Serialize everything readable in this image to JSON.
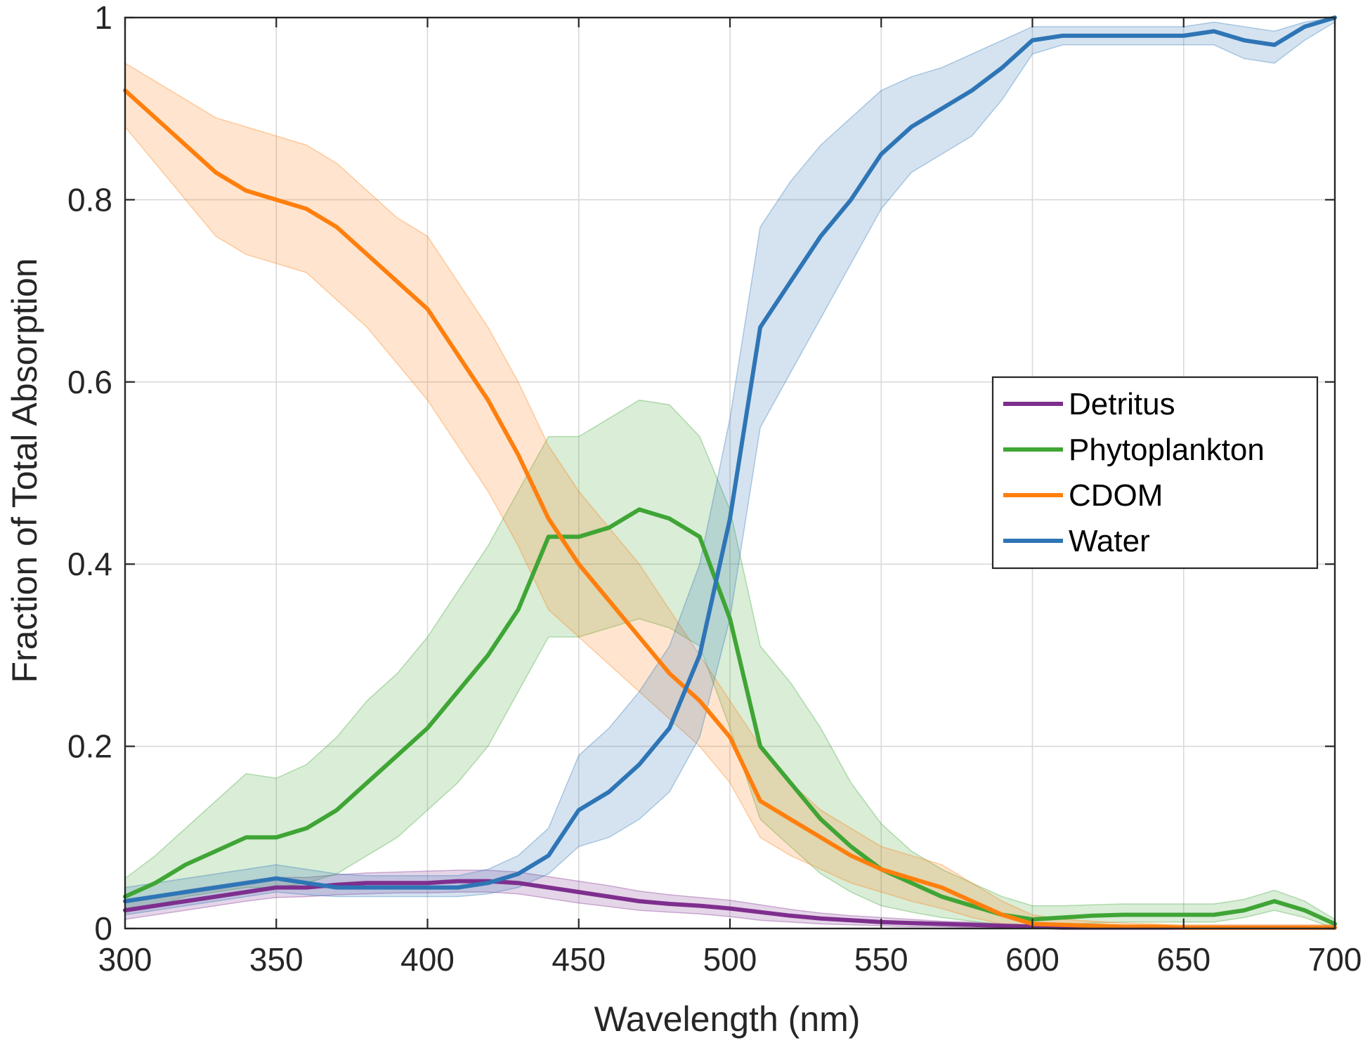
{
  "chart_data": {
    "type": "line",
    "xlabel": "Wavelength (nm)",
    "ylabel": "Fraction of Total Absorption",
    "xlim": [
      300,
      700
    ],
    "ylim": [
      0,
      1
    ],
    "grid": true,
    "legend_position": "right-middle",
    "x_ticks": [
      300,
      350,
      400,
      450,
      500,
      550,
      600,
      650,
      700
    ],
    "y_ticks": [
      0,
      0.2,
      0.4,
      0.6,
      0.8,
      1
    ],
    "y_tick_labels": [
      "0",
      "0.2",
      "0.4",
      "0.6",
      "0.8",
      "1"
    ],
    "x": [
      300,
      310,
      320,
      330,
      340,
      350,
      360,
      370,
      380,
      390,
      400,
      410,
      420,
      430,
      440,
      450,
      460,
      470,
      480,
      490,
      500,
      510,
      520,
      530,
      540,
      550,
      560,
      570,
      580,
      590,
      600,
      610,
      620,
      630,
      640,
      650,
      660,
      670,
      680,
      690,
      700
    ],
    "series": [
      {
        "name": "Detritus",
        "color": "#7E2F8E",
        "values": [
          0.02,
          0.025,
          0.03,
          0.035,
          0.04,
          0.045,
          0.045,
          0.048,
          0.05,
          0.05,
          0.05,
          0.052,
          0.052,
          0.05,
          0.045,
          0.04,
          0.035,
          0.03,
          0.027,
          0.025,
          0.022,
          0.018,
          0.014,
          0.011,
          0.009,
          0.007,
          0.006,
          0.005,
          0.004,
          0.003,
          0.002,
          0.001,
          0.001,
          0.001,
          0.001,
          0.001,
          0.001,
          0.001,
          0.001,
          0.001,
          0.001
        ],
        "band_lower": [
          0.01,
          0.015,
          0.02,
          0.025,
          0.03,
          0.034,
          0.035,
          0.037,
          0.038,
          0.039,
          0.039,
          0.04,
          0.04,
          0.038,
          0.033,
          0.028,
          0.024,
          0.02,
          0.018,
          0.016,
          0.013,
          0.009,
          0.007,
          0.005,
          0.004,
          0.003,
          0.002,
          0.002,
          0.001,
          0.001,
          0.0,
          0.0,
          0.0,
          0.0,
          0.0,
          0.0,
          0.0,
          0.0,
          0.0,
          0.0,
          0.0
        ],
        "band_upper": [
          0.03,
          0.036,
          0.042,
          0.047,
          0.052,
          0.056,
          0.056,
          0.059,
          0.061,
          0.062,
          0.063,
          0.064,
          0.064,
          0.062,
          0.057,
          0.052,
          0.047,
          0.041,
          0.037,
          0.034,
          0.031,
          0.026,
          0.021,
          0.017,
          0.014,
          0.012,
          0.01,
          0.008,
          0.007,
          0.005,
          0.004,
          0.003,
          0.002,
          0.002,
          0.002,
          0.002,
          0.002,
          0.002,
          0.002,
          0.002,
          0.002
        ]
      },
      {
        "name": "Phytoplankton",
        "color": "#3FA535",
        "values": [
          0.035,
          0.05,
          0.07,
          0.085,
          0.1,
          0.1,
          0.11,
          0.13,
          0.16,
          0.19,
          0.22,
          0.26,
          0.3,
          0.35,
          0.43,
          0.43,
          0.44,
          0.46,
          0.45,
          0.43,
          0.34,
          0.2,
          0.16,
          0.12,
          0.09,
          0.065,
          0.05,
          0.035,
          0.025,
          0.015,
          0.01,
          0.012,
          0.014,
          0.015,
          0.015,
          0.015,
          0.015,
          0.02,
          0.03,
          0.02,
          0.005
        ],
        "band_lower": [
          0.02,
          0.025,
          0.035,
          0.04,
          0.045,
          0.045,
          0.05,
          0.06,
          0.08,
          0.1,
          0.13,
          0.16,
          0.2,
          0.26,
          0.32,
          0.32,
          0.33,
          0.34,
          0.33,
          0.31,
          0.22,
          0.12,
          0.09,
          0.06,
          0.04,
          0.025,
          0.018,
          0.012,
          0.008,
          0.004,
          0.002,
          0.004,
          0.006,
          0.007,
          0.007,
          0.007,
          0.007,
          0.012,
          0.02,
          0.012,
          0.0
        ],
        "band_upper": [
          0.055,
          0.08,
          0.11,
          0.14,
          0.17,
          0.165,
          0.18,
          0.21,
          0.25,
          0.28,
          0.32,
          0.37,
          0.42,
          0.48,
          0.54,
          0.54,
          0.56,
          0.58,
          0.575,
          0.54,
          0.46,
          0.31,
          0.27,
          0.22,
          0.16,
          0.115,
          0.085,
          0.065,
          0.05,
          0.035,
          0.025,
          0.025,
          0.026,
          0.027,
          0.027,
          0.027,
          0.027,
          0.032,
          0.042,
          0.03,
          0.01
        ]
      },
      {
        "name": "CDOM",
        "color": "#FF7F0E",
        "values": [
          0.92,
          0.89,
          0.86,
          0.83,
          0.81,
          0.8,
          0.79,
          0.77,
          0.74,
          0.71,
          0.68,
          0.63,
          0.58,
          0.52,
          0.45,
          0.4,
          0.36,
          0.32,
          0.28,
          0.25,
          0.21,
          0.14,
          0.12,
          0.1,
          0.08,
          0.065,
          0.055,
          0.045,
          0.03,
          0.015,
          0.005,
          0.004,
          0.003,
          0.002,
          0.002,
          0.001,
          0.001,
          0.001,
          0.001,
          0.001,
          0.001
        ],
        "band_lower": [
          0.88,
          0.84,
          0.8,
          0.76,
          0.74,
          0.73,
          0.72,
          0.69,
          0.66,
          0.62,
          0.58,
          0.53,
          0.48,
          0.42,
          0.35,
          0.32,
          0.29,
          0.26,
          0.23,
          0.2,
          0.16,
          0.1,
          0.08,
          0.065,
          0.05,
          0.04,
          0.03,
          0.022,
          0.012,
          0.005,
          0.0,
          0.0,
          0.0,
          0.0,
          0.0,
          0.0,
          0.0,
          0.0,
          0.0,
          0.0,
          0.0
        ],
        "band_upper": [
          0.95,
          0.93,
          0.91,
          0.89,
          0.88,
          0.87,
          0.86,
          0.84,
          0.81,
          0.78,
          0.76,
          0.71,
          0.66,
          0.6,
          0.53,
          0.48,
          0.44,
          0.4,
          0.35,
          0.3,
          0.25,
          0.2,
          0.16,
          0.13,
          0.11,
          0.09,
          0.08,
          0.07,
          0.05,
          0.03,
          0.015,
          0.01,
          0.008,
          0.006,
          0.005,
          0.004,
          0.004,
          0.004,
          0.004,
          0.004,
          0.004
        ]
      },
      {
        "name": "Water",
        "color": "#2E75B6",
        "values": [
          0.03,
          0.035,
          0.04,
          0.045,
          0.05,
          0.055,
          0.05,
          0.045,
          0.045,
          0.045,
          0.045,
          0.045,
          0.05,
          0.06,
          0.08,
          0.13,
          0.15,
          0.18,
          0.22,
          0.3,
          0.45,
          0.66,
          0.71,
          0.76,
          0.8,
          0.85,
          0.88,
          0.9,
          0.92,
          0.945,
          0.975,
          0.98,
          0.98,
          0.98,
          0.98,
          0.98,
          0.985,
          0.975,
          0.97,
          0.99,
          1.0
        ],
        "band_lower": [
          0.015,
          0.02,
          0.025,
          0.03,
          0.035,
          0.04,
          0.037,
          0.035,
          0.035,
          0.035,
          0.035,
          0.035,
          0.038,
          0.045,
          0.06,
          0.09,
          0.1,
          0.12,
          0.15,
          0.21,
          0.34,
          0.55,
          0.61,
          0.67,
          0.73,
          0.79,
          0.83,
          0.85,
          0.87,
          0.91,
          0.96,
          0.97,
          0.97,
          0.97,
          0.97,
          0.97,
          0.97,
          0.955,
          0.95,
          0.975,
          0.995
        ],
        "band_upper": [
          0.045,
          0.05,
          0.055,
          0.06,
          0.065,
          0.07,
          0.065,
          0.06,
          0.058,
          0.058,
          0.058,
          0.058,
          0.065,
          0.08,
          0.11,
          0.19,
          0.22,
          0.26,
          0.31,
          0.4,
          0.56,
          0.77,
          0.82,
          0.86,
          0.89,
          0.92,
          0.935,
          0.945,
          0.96,
          0.975,
          0.99,
          0.99,
          0.99,
          0.99,
          0.99,
          0.99,
          0.995,
          0.99,
          0.985,
          0.995,
          1.0
        ]
      }
    ]
  }
}
